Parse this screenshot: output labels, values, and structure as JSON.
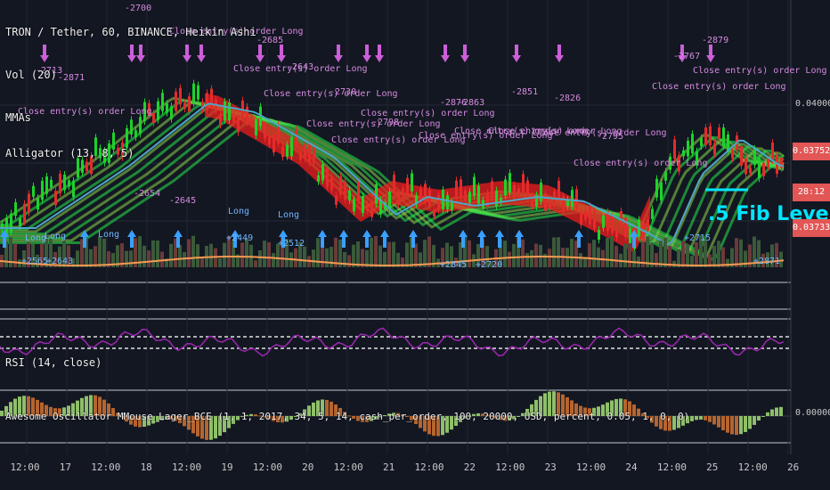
{
  "header": {
    "symbol": "TRON / Tether, 60, BINANCE, Heikin Ashi",
    "vol": "Vol (20)",
    "mmas": "MMAs",
    "alligator": "Alligator (13, 8, 5)"
  },
  "panes": {
    "rsi_label": "RSI (14, close)",
    "ao_label": "Awesome Oscillator MMouse_Lager_BCE (1, 1, 2017, 34, 5, 14, cash_per_order, 100, 20000, USD, percent, 0.05, 1, 0, 0)",
    "fib_label": ".5 Fib Level"
  },
  "price_axis": {
    "top": "0.04000",
    "zero": "0.0000000",
    "tags": [
      {
        "text": "0.03752",
        "color": "#e25656"
      },
      {
        "text": "28:12",
        "color": "#e25656"
      },
      {
        "text": "0.03733",
        "color": "#e25656"
      }
    ]
  },
  "time_axis": [
    "12:00",
    "17",
    "12:00",
    "18",
    "12:00",
    "19",
    "12:00",
    "20",
    "12:00",
    "21",
    "12:00",
    "22",
    "12:00",
    "23",
    "12:00",
    "24",
    "12:00",
    "25",
    "12:00",
    "26"
  ],
  "annotations": {
    "close_label": "Close entry(s) order Long",
    "long_label": "Long",
    "close_labels": [
      {
        "text": "Close entry(s) order Long"
      },
      {
        "text": "Close entry(s) order Long"
      },
      {
        "text": "Close entry(s) order Long"
      },
      {
        "text": "Close entry(s) order Long"
      },
      {
        "text": "Close entry(s) order Long"
      },
      {
        "text": "Close entry(s) order Long"
      },
      {
        "text": "Close entry(s) order Long"
      },
      {
        "text": "Close entry(s) order Long"
      },
      {
        "text": "Close entry(s) order Long"
      },
      {
        "text": "Close entry(s) order Long"
      },
      {
        "text": "Close entry(s) order Long"
      },
      {
        "text": "Close entry(s) order Long"
      },
      {
        "text": "Close entry(s) order Long"
      },
      {
        "text": "Close entry(s) order Long"
      }
    ],
    "pnl": [
      "-2713",
      "-2871",
      "-2700",
      "-2685",
      "-2643",
      "-2730",
      "-2798",
      "-2876",
      "-2863",
      "-2851",
      "-2826",
      "-2795",
      "-2767",
      "-2879",
      "-2654",
      "-2645",
      "+2449",
      "+2512",
      "+2565",
      "+2643",
      "+2715",
      "+2871",
      "+2845",
      "+2720"
    ]
  },
  "colors": {
    "bg": "#131722",
    "up": "#1bd42a",
    "down": "#e52b2b",
    "ma_green": "#27e84a",
    "ma_red": "#f01d1d",
    "teal": "#4fa6c8",
    "orange": "#f59a51",
    "rsi": "#9c27b0",
    "arrow_up": "#3aa0ff",
    "arrow_down": "#cc5ed8",
    "fib": "#00e5ff"
  }
}
